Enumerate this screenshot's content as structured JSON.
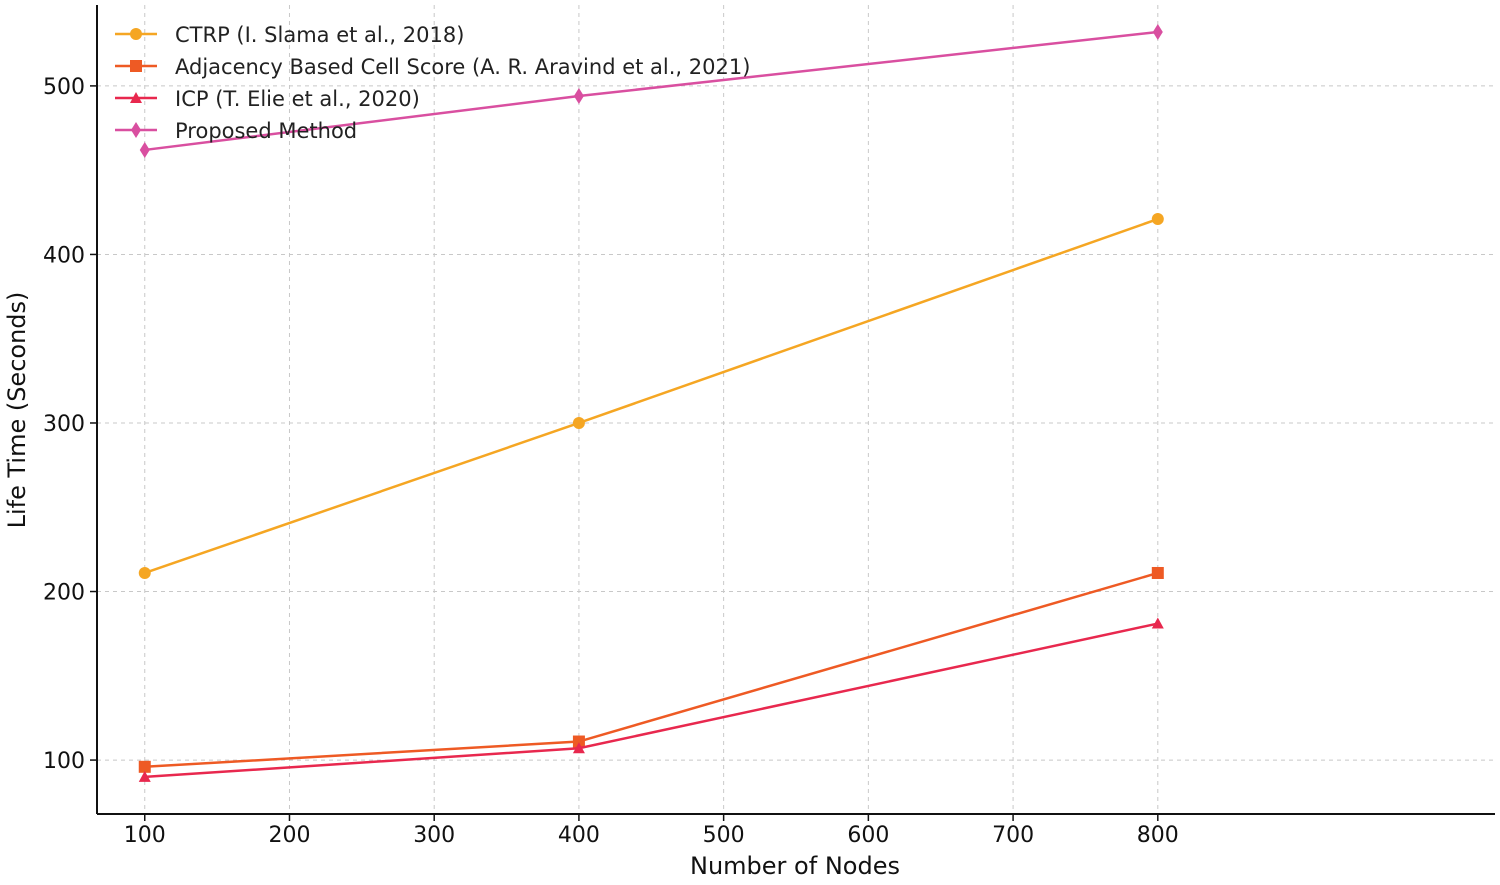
{
  "chart_data": {
    "type": "line",
    "title": "",
    "xlabel": "Number of Nodes",
    "ylabel": "Life Time (Seconds)",
    "x": [
      100,
      400,
      800
    ],
    "xlim": [
      67,
      1033
    ],
    "ylim": [
      68,
      548
    ],
    "xticks": [
      100,
      200,
      300,
      400,
      500,
      600,
      700,
      800
    ],
    "yticks": [
      100,
      200,
      300,
      400,
      500
    ],
    "grid": true,
    "legend_position": "top-left",
    "series": [
      {
        "name": "CTRP (I. Slama et al., 2018)",
        "values": [
          211,
          300,
          421
        ],
        "color": "#f5a623",
        "marker": "circle"
      },
      {
        "name": "Adjacency Based Cell Score (A. R. Aravind et al., 2021)",
        "values": [
          96,
          111,
          211
        ],
        "color": "#ee5a24",
        "marker": "square"
      },
      {
        "name": "ICP (T. Elie et al., 2020)",
        "values": [
          90,
          107,
          181
        ],
        "color": "#e8284e",
        "marker": "triangle"
      },
      {
        "name": "Proposed Method",
        "values": [
          462,
          494,
          532
        ],
        "color": "#d94fa0",
        "marker": "diamond"
      }
    ]
  }
}
